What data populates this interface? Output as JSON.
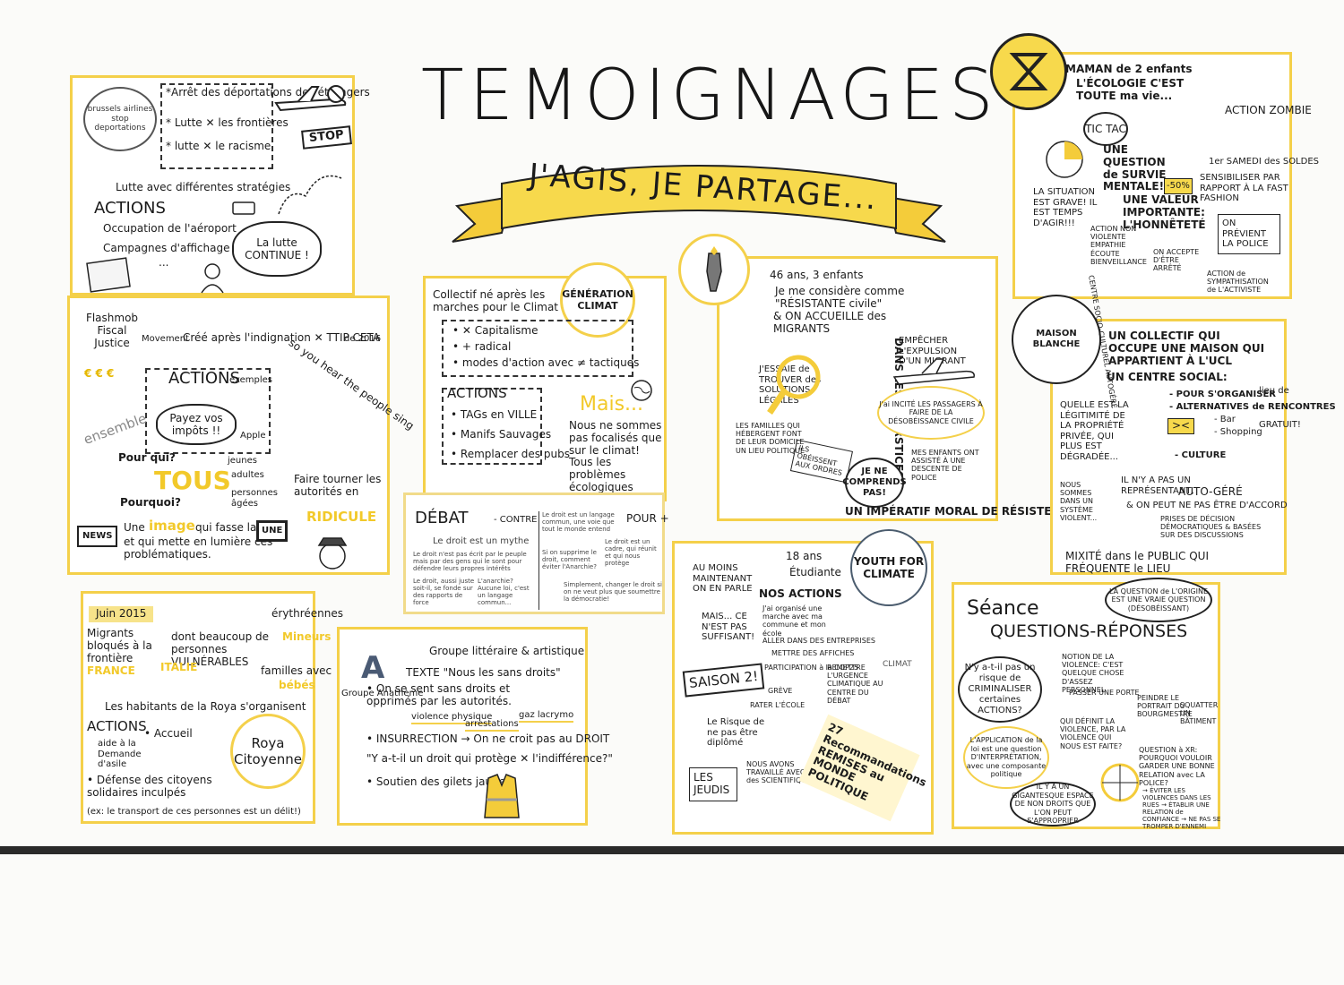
{
  "title": "TEMOIGNAGES",
  "banner": "J'AGIS, JE PARTAGE...",
  "panel_airlines": {
    "logo": "brussels airlines stop deportations",
    "items": [
      "*Arrêt des déportations des étrangers",
      "* Lutte ✕ les frontières",
      "* lutte ✕ le racisme"
    ],
    "stop": "STOP",
    "strategy": "Lutte avec différentes stratégies",
    "actions_title": "ACTIONS",
    "actions": [
      "Occupation de l'aéroport",
      "Campagnes d'affichage",
      "..."
    ],
    "bubble": "La lutte CONTINUE !"
  },
  "panel_flashmob": {
    "name": "Flashmob Fiscal Justice",
    "movement": "Movement",
    "created": "Créé après l'indignation ✕ TTIP CETA",
    "year": "de 2016",
    "actions_title": "ACTIONS",
    "examples": "exemples",
    "speech": "Payez vos impôts !!",
    "apple": "Apple",
    "song": "so you hear the people sing",
    "ensemble": "ensemble",
    "pour_qui": "Pour qui?",
    "tous": "TOUS",
    "who": [
      "jeunes",
      "adultes",
      "personnes âgées"
    ],
    "pourquoi": "Pourquoi?",
    "why1": "Faire tourner les autorités en",
    "ridicule": "RIDICULE",
    "why2_a": "Une",
    "image": "image",
    "why2_b": "qui fasse la UNE",
    "why3": "et qui mette en lumière ces problématiques.",
    "news": "NEWS",
    "une": "UNE",
    "euro": "€ € €"
  },
  "panel_generation": {
    "intro": "Collectif né après les marches pour le Climat",
    "points": [
      "• ✕ Capitalisme",
      "• + radical",
      "• modes d'action avec ≠ tactiques"
    ],
    "logo": "GÉNÉRATION CLIMAT",
    "actions_title": "ACTIONS",
    "actions": [
      "• TAGs en VILLE",
      "• Manifs Sauvages",
      "• Remplacer des pubs"
    ],
    "mais": "Mais...",
    "note": "Nous ne sommes pas focalisés que sur le climat! Tous les problèmes écologiques nous préoccupent"
  },
  "panel_debat": {
    "title": "DÉBAT",
    "contre": "- CONTRE",
    "pour": "POUR +",
    "left": [
      "Le droit est un mythe",
      "Le droit n'est pas écrit par le peuple mais par des gens qui le sont pour défendre leurs propres intérêts",
      "Le droit, aussi juste soit-il, se fonde sur des rapports de force",
      "L'anarchie? Aucune loi, c'est un langage commun..."
    ],
    "right": [
      "Le droit est un langage commun, une voie que tout le monde entend",
      "Le droit est un cadre, qui réunit et qui nous protège",
      "Si on supprime le droit, comment éviter l'Anarchie?",
      "Simplement, changer le droit si on ne veut plus que soumettre la démocratie!"
    ]
  },
  "panel_roya": {
    "date": "Juin 2015",
    "migrants": "Migrants bloqués à la frontière",
    "detail": "dont beaucoup de personnes VULNÉRABLES",
    "erythreens": "érythréennes",
    "mineurs": "Mineurs",
    "familles": "familles avec",
    "bebes": "bébés",
    "france": "FRANCE",
    "italie": "ITALIE",
    "habitants": "Les habitants de la Roya s'organisent",
    "actions_title": "ACTIONS",
    "actions": [
      "• Accueil",
      "aide à la Demande d'asile",
      "• Défense des citoyens solidaires inculpés"
    ],
    "note": "(ex: le transport de ces personnes est un délit!)",
    "logo": "Roya Citoyenne"
  },
  "panel_anatheme": {
    "letter": "A",
    "group": "Groupe Anathème",
    "desc": "Groupe littéraire & artistique",
    "texte": "TEXTE \"Nous les sans droits\"",
    "line1": "• On se sent sans droits et opprimés par les autorités.",
    "tags": [
      "violence physique",
      "arrestations",
      "gaz lacrymo"
    ],
    "insurrection": "• INSURRECTION → On ne croit pas au DROIT",
    "question": "\"Y a-t-il un droit qui protège ✕ l'indifférence?\"",
    "gilets": "• Soutien des gilets jaunes"
  },
  "panel_resistante": {
    "intro": "46 ans, 3 enfants",
    "line": "Je me considère comme \"RÉSISTANTE civile\"",
    "accueil": "& ON ACCUEILLE des MIGRANTS",
    "interstices": "DANS LES INTERSTICES",
    "solutions": "J'ESSAIE de TROUVER des SOLUTIONS LÉGALES",
    "familles": "LES FAMILLES QUI HÉBERGENT FONT DE LEUR DOMICILE UN LIEU POLITIQUE",
    "expulsion": "EMPÊCHER L'EXPULSION D'UN MIGRANT",
    "incite": "J'ai INCITÉ LES PASSAGERS À FAIRE DE LA DÉSOBÉISSANCE CIVILE",
    "enfants": "MES ENFANTS ONT ASSISTÉ À UNE DESCENTE DE POLICE",
    "ordres": "ILS OBÉISSENT AUX ORDRES",
    "comprends": "JE NE COMPRENDS PAS!",
    "imperatif": "UN IMPÉRATIF MORAL DE RÉSISTER"
  },
  "panel_youth": {
    "age": "18 ans",
    "status": "Étudiante",
    "logo": "YOUTH FOR CLIMATE",
    "moins": "AU MOINS MAINTENANT ON EN PARLE",
    "mais": "MAIS... CE N'EST PAS SUFFISANT!",
    "saison": "SAISON 2!",
    "risque": "Le Risque de ne pas être diplômé",
    "actions_title": "NOS ACTIONS",
    "actions": [
      "J'ai organisé une marche avec ma commune et mon école",
      "ALLER DANS DES ENTREPRISES",
      "METTRE DES AFFICHES",
      "PARTICIPATION à la COP25",
      "GRÈVE",
      "RATER L'ÉCOLE"
    ],
    "remettre": "REMETTRE L'URGENCE CLIMATIQUE AU CENTRE DU DÉBAT",
    "climat": "CLIMAT",
    "jeudis": "LES JEUDIS",
    "scientifiques": "NOUS AVONS TRAVAILLÉ AVEC des SCIENTIFIQUES",
    "scroll": "27 Recommandations REMISES au MONDE POLITIQUE"
  },
  "panel_xr": {
    "maman": "MAMAN de 2 enfants",
    "ecologie": "L'ÉCOLOGIE C'EST TOUTE ma vie...",
    "tictac": "TIC TAC",
    "survie": "UNE QUESTION de SURVIE MENTALE!",
    "zombie": "ACTION ZOMBIE",
    "samedi": "1er SAMEDI des SOLDES",
    "sensibiliser": "SENSIBILISER PAR RAPPORT À LA FAST FASHION",
    "price": "-50%",
    "situation": "LA SITUATION EST GRAVE! IL EST TEMPS D'AGIR!!!",
    "valeur": "UNE VALEUR IMPORTANTE: L'HONNÊTETÉ",
    "nonviolente": "ACTION NON VIOLENTE EMPATHIE ÉCOUTE BIENVEILLANCE",
    "previent": "ON PRÉVIENT LA POLICE",
    "accepte": "ON ACCEPTE D'ÊTRE ARRÊTÉ",
    "sympathisation": "ACTION de SYMPATHISATION de L'ACTIVISTE"
  },
  "panel_maison": {
    "sign": "MAISON BLANCHE",
    "sign2": "CENTRE SOCIO-CULTUREL AUTOGÉRÉ",
    "intro": "UN COLLECTIF QUI OCCUPE UNE MAISON QUI APPARTIENT À L'UCL",
    "centre": "UN CENTRE SOCIAL:",
    "organiser": "- POUR S'ORGANISER",
    "alternatives": "- ALTERNATIVES de RENCONTRES",
    "lieu": "lieu de",
    "bar": "- Bar",
    "shopping": "- Shopping",
    "gratuit": "GRATUIT!",
    "culture": "- CULTURE",
    "legitimite": "QUELLE EST LA LÉGITIMITÉ DE LA PROPRIÉTÉ PRIVÉE, QUI PLUS EST DÉGRADÉE...",
    "violent": "NOUS SOMMES DANS UN SYSTÈME VIOLENT...",
    "representant": "IL N'Y A PAS UN REPRÉSENTANT,",
    "autogere": "AUTO-GÉRÉ",
    "accord": "& ON PEUT NE PAS ÊTRE D'ACCORD",
    "decision": "PRISES DE DÉCISION DÉMOCRATIQUES & BASÉES SUR DES DISCUSSIONS",
    "mixite": "MIXITÉ dans le PUBLIC QUI FRÉQUENTE le LIEU"
  },
  "panel_questions": {
    "title1": "Séance",
    "title2": "QUESTIONS-RÉPONSES",
    "origine": "LA QUESTION de L'ORIGINE EST UNE VRAIE QUESTION (DÉSOBÉISSANT)",
    "q1": "N'y a-t-il pas un risque de CRIMINALISER certaines ACTIONS?",
    "violence": "NOTION DE LA VIOLENCE: C'EST QUELQUE CHOSE D'ASSEZ PERSONNEL",
    "passer": "PASSER UNE PORTE",
    "peindre": "PEINDRE LE PORTRAIT DU BOURGMESTRE",
    "squatter": "SQUATTER UN BÂTIMENT",
    "definir": "QUI DÉFINIT LA VIOLENCE, PAR LA VIOLENCE QUI NOUS EST FAITE?",
    "application": "L'APPLICATION de la loi est une question D'INTERPRÉTATION, avec une composante politique",
    "xr_q": "QUESTION à XR: POURQUOI VOULOIR GARDER UNE BONNE RELATION avec LA POLICE?",
    "gigantesque": "IL Y A UN GIGANTESQUE ESPACE DE NON DROITS QUE L'ON PEUT S'APPROPRIER",
    "eviter": "→ ÉVITER LES VIOLENCES DANS LES RUES → ÉTABLIR UNE RELATION de CONFIANCE → NE PAS SE TROMPER D'ENNEMI"
  }
}
